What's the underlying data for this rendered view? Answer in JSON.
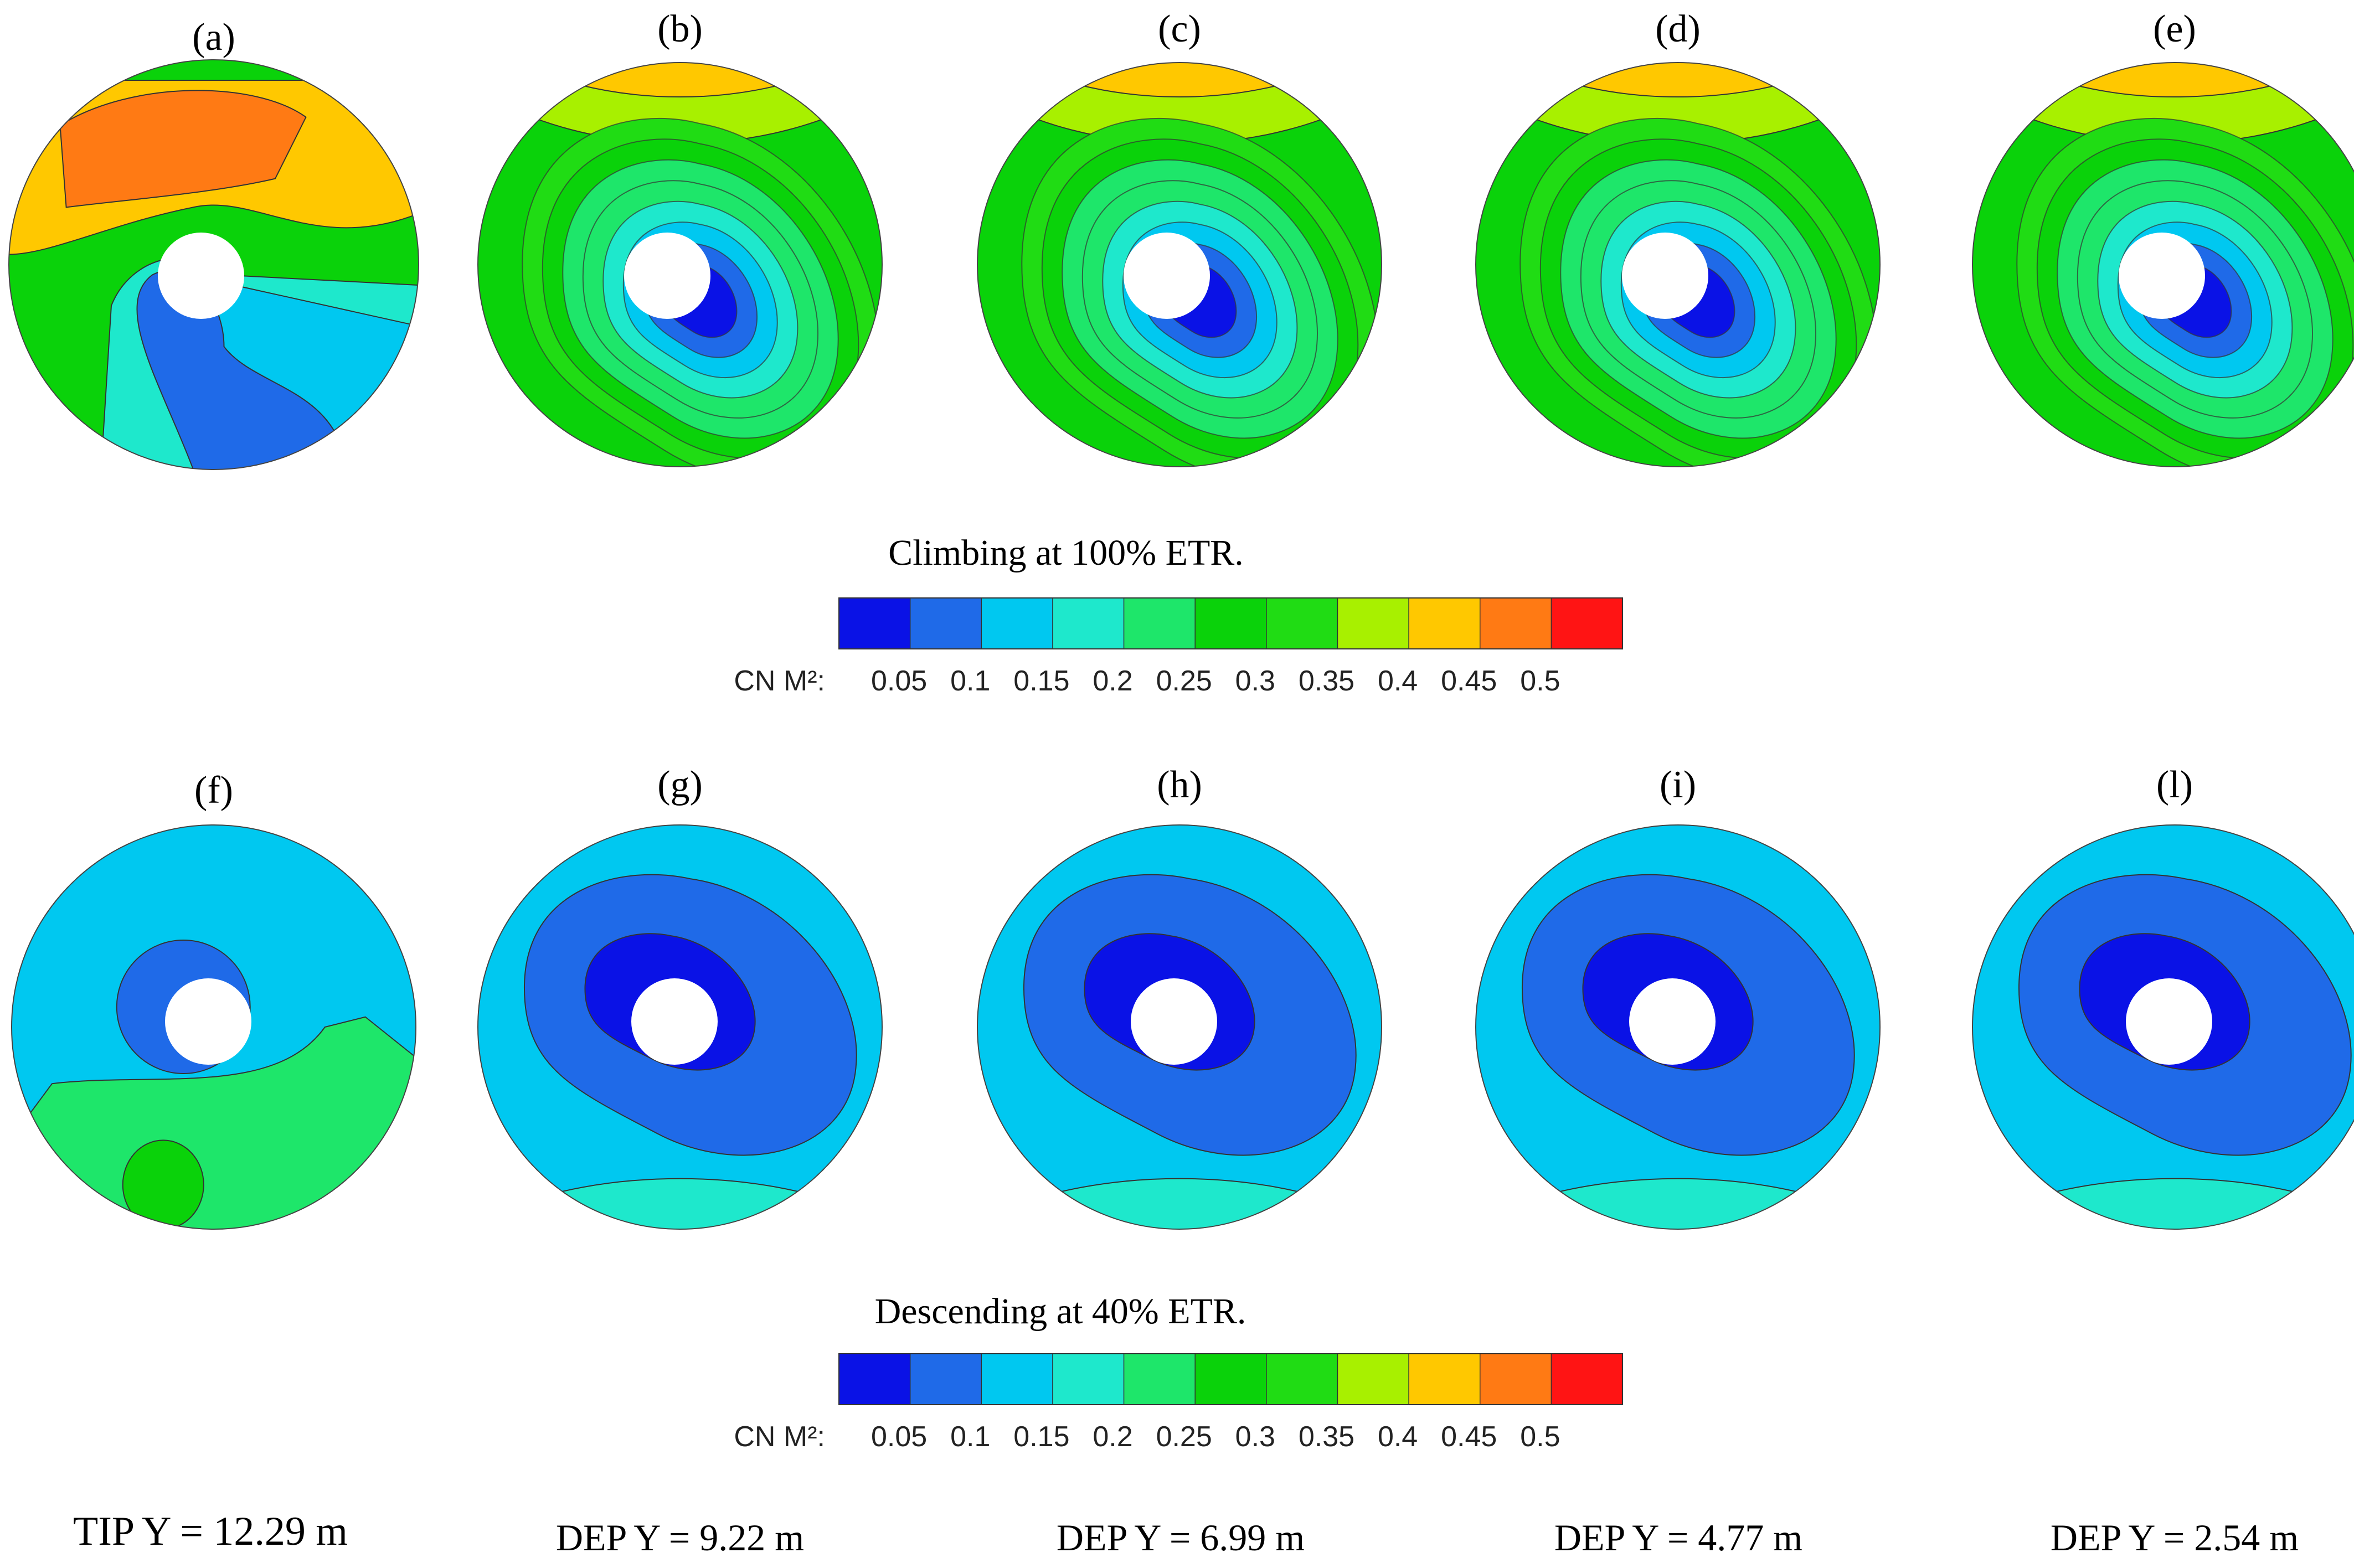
{
  "colorbar": {
    "label": "CN M²:",
    "ticks": [
      "0.05",
      "0.1",
      "0.15",
      "0.2",
      "0.25",
      "0.3",
      "0.35",
      "0.4",
      "0.45",
      "0.5"
    ],
    "colors": [
      "#0a12e6",
      "#1f6ae8",
      "#00c8f0",
      "#1ee8cc",
      "#1ee66a",
      "#0ad20a",
      "#20dc14",
      "#a8f000",
      "#ffc800",
      "#ff7a14",
      "#ff1414"
    ]
  },
  "rows": [
    {
      "title": "Climbing at 100% ETR.",
      "panels": [
        {
          "label": "(a)",
          "pattern": "climb_tip"
        },
        {
          "label": "(b)",
          "pattern": "climb_dep"
        },
        {
          "label": "(c)",
          "pattern": "climb_dep"
        },
        {
          "label": "(d)",
          "pattern": "climb_dep"
        },
        {
          "label": "(e)",
          "pattern": "climb_dep"
        }
      ]
    },
    {
      "title": "Descending at 40% ETR.",
      "panels": [
        {
          "label": "(f)",
          "pattern": "desc_tip"
        },
        {
          "label": "(g)",
          "pattern": "desc_dep"
        },
        {
          "label": "(h)",
          "pattern": "desc_dep"
        },
        {
          "label": "(i)",
          "pattern": "desc_dep"
        },
        {
          "label": "(l)",
          "pattern": "desc_dep"
        }
      ]
    }
  ],
  "positions": [
    "TIP Y = 12.29 m",
    "DEP Y = 9.22 m",
    "DEP Y = 6.99 m",
    "DEP Y = 4.77 m",
    "DEP Y = 2.54 m"
  ]
}
